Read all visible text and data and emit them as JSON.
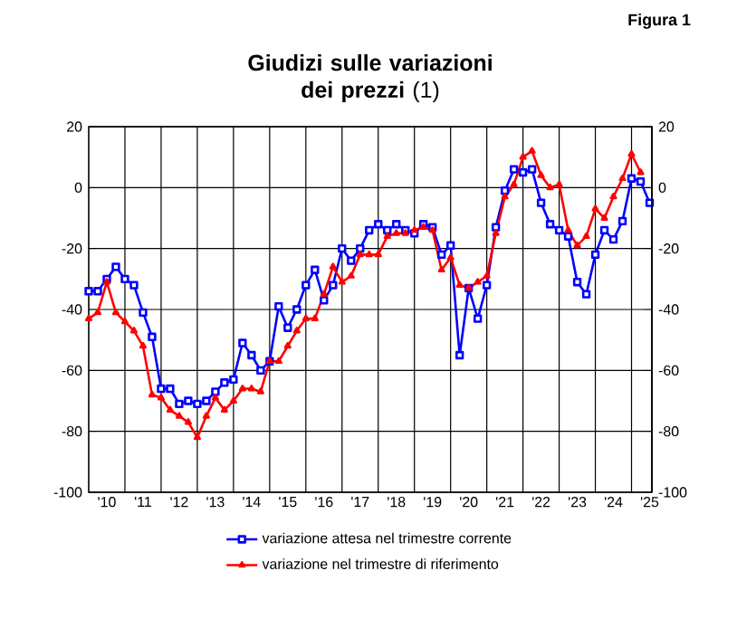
{
  "chart_data": {
    "type": "line",
    "title": "**Giudizi sulle variazioni dei prezzi** (1)",
    "annotations": [
      "Figura 1"
    ],
    "categories": [
      null,
      null,
      "'10",
      null,
      null,
      null,
      "'11",
      null,
      null,
      null,
      "'12",
      null,
      null,
      null,
      "'13",
      null,
      null,
      null,
      "'14",
      null,
      null,
      null,
      "'15",
      null,
      null,
      null,
      "'16",
      null,
      null,
      null,
      "'17",
      null,
      null,
      null,
      "'18",
      null,
      null,
      null,
      "'19",
      null,
      null,
      null,
      "'20",
      null,
      null,
      null,
      "'21",
      null,
      null,
      null,
      "'22",
      null,
      null,
      null,
      "'23",
      null,
      null,
      null,
      "'24",
      null,
      null,
      null,
      "'25"
    ],
    "series": [
      {
        "name": "variazione attesa nel trimestre corrente",
        "color": "#0000ff",
        "marker": "square",
        "values": [
          -34,
          -34,
          -30,
          -26,
          -30,
          -32,
          -41,
          -49,
          -66,
          -66,
          -71,
          -70,
          -71,
          -70,
          -67,
          -64,
          -63,
          -51,
          -55,
          -60,
          -57,
          -39,
          -46,
          -40,
          -32,
          -27,
          -37,
          -32,
          -20,
          -24,
          -20,
          -14,
          -12,
          -14,
          -12,
          -14,
          -15,
          -12,
          -13,
          -22,
          -19,
          -55,
          -33,
          -43,
          -32,
          -13,
          -1,
          6,
          5,
          6,
          -5,
          -12,
          -14,
          -16,
          -31,
          -35,
          -22,
          -14,
          -17,
          -11,
          3,
          2,
          -5
        ]
      },
      {
        "name": "variazione nel trimestre di riferimento",
        "color": "#ff0000",
        "marker": "triangle",
        "values": [
          -43,
          -41,
          -31,
          -41,
          -44,
          -47,
          -52,
          -68,
          -69,
          -73,
          -75,
          -77,
          -82,
          -75,
          -69,
          -73,
          -70,
          -66,
          -66,
          -67,
          -57,
          -57,
          -52,
          -47,
          -43,
          -43,
          -35,
          -26,
          -31,
          -29,
          -22,
          -22,
          -22,
          -16,
          -15,
          -15,
          -14,
          -13,
          -14,
          -27,
          -23,
          -32,
          -33,
          -31,
          -29,
          -15,
          -3,
          1,
          10,
          12,
          4,
          0,
          1,
          -14,
          -19,
          -16,
          -7,
          -10,
          -3,
          3,
          11,
          5,
          null
        ]
      }
    ],
    "ylim": [
      -100,
      20
    ],
    "yticks": [
      -100,
      -80,
      -60,
      -40,
      -20,
      0,
      20
    ],
    "y2lim": [
      -100,
      20
    ],
    "y2ticks": [
      -100,
      -80,
      -60,
      -40,
      -20,
      0,
      20
    ],
    "grid": true,
    "legend": "bottom"
  }
}
